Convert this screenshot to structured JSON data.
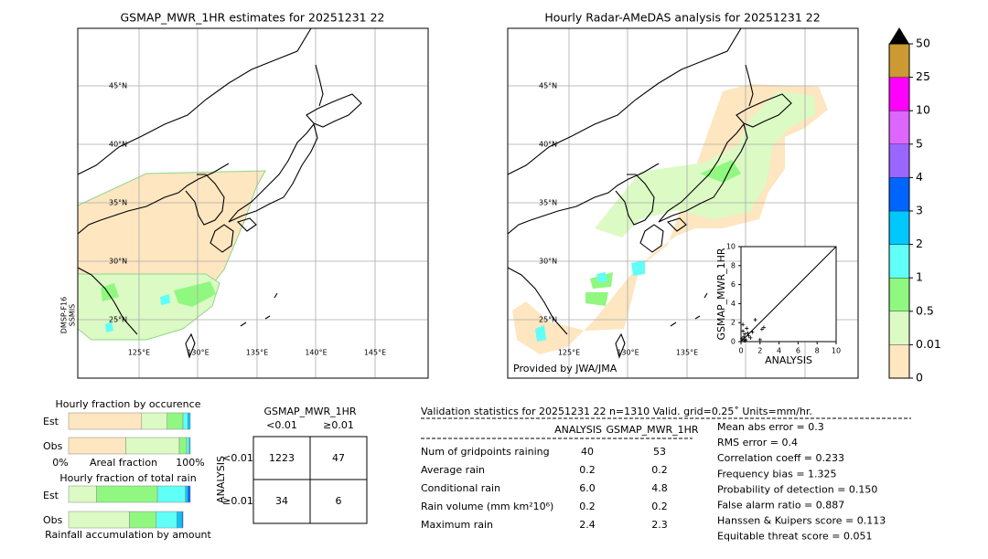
{
  "left_map": {
    "title": "GSMAP_MWR_1HR estimates for 20251231 22",
    "lat_labels": [
      "45°N",
      "40°N",
      "35°N",
      "30°N",
      "25°N"
    ],
    "lon_labels": [
      "125°E",
      "130°E",
      "135°E",
      "140°E",
      "145°E"
    ],
    "side_label": [
      "DMSP-F16",
      "SSMIS"
    ]
  },
  "right_map": {
    "title": "Hourly Radar-AMeDAS analysis for 20251231 22",
    "lat_labels": [
      "45°N",
      "40°N",
      "35°N",
      "30°N",
      "25°N"
    ],
    "lon_labels": [
      "125°E",
      "130°E",
      "135°E"
    ],
    "credit": "Provided by JWA/JMA"
  },
  "scatter": {
    "xlabel": "ANALYSIS",
    "ylabel": "GSMAP_MWR_1HR",
    "xlim": [
      0,
      10
    ],
    "ylim": [
      0,
      10
    ],
    "xticks": [
      0,
      2,
      4,
      6,
      8,
      10
    ],
    "yticks": [
      0,
      2,
      4,
      6,
      8,
      10
    ],
    "x": [
      0.1,
      0.2,
      0.3,
      0.4,
      0.5,
      0.6,
      0.8,
      1.0,
      1.2,
      1.5,
      2.0,
      2.2,
      2.4,
      0.2,
      0.4,
      0.7
    ],
    "y": [
      0.3,
      1.1,
      0.5,
      0.8,
      0.2,
      1.4,
      0.6,
      0.4,
      1.0,
      2.3,
      0.2,
      1.3,
      1.5,
      1.8,
      0.1,
      0.9
    ]
  },
  "colorbar": {
    "ticks": [
      0,
      0.01,
      0.5,
      1,
      2,
      3,
      4,
      5,
      10,
      25,
      50
    ],
    "colors": [
      "#fde6c0",
      "#dcfac4",
      "#90f880",
      "#60fff8",
      "#00c8ff",
      "#0064ff",
      "#9966ff",
      "#dd66ff",
      "#ff00ff",
      "#cc9933"
    ],
    "extend_color": "#000000"
  },
  "occurrence": {
    "title": "Hourly fraction by occurence",
    "rows": [
      "Est",
      "Obs"
    ],
    "axis_labels": [
      "0%",
      "Areal fraction",
      "100%"
    ],
    "xlim": [
      0,
      100
    ],
    "colors": [
      "#fde6c0",
      "#dcfac4",
      "#90f880",
      "#60fff8",
      "#00c8ff"
    ],
    "series": [
      [
        60,
        21,
        13,
        4,
        2
      ],
      [
        47,
        44,
        6,
        2,
        1
      ]
    ]
  },
  "total": {
    "title": "Hourly fraction of total rain",
    "rows": [
      "Est",
      "Obs"
    ],
    "footer": "Rainfall accumulation by amount",
    "xlim": [
      0,
      100
    ],
    "colors": [
      "#dcfac4",
      "#90f880",
      "#60fff8",
      "#00c8ff",
      "#0064ff"
    ],
    "series": [
      [
        23,
        50,
        23,
        2,
        2
      ],
      [
        50,
        22,
        17,
        4,
        1
      ]
    ]
  },
  "contingency": {
    "title": "GSMAP_MWR_1HR",
    "columns": [
      "<0.01",
      "≥0.01"
    ],
    "row_axis": "ANALYSIS",
    "rows": [
      "<0.01",
      "≥0.01"
    ],
    "cells": [
      [
        1223,
        47
      ],
      [
        34,
        6
      ]
    ]
  },
  "stats": {
    "title": "Validation statistics for 20251231 22  n=1310 Valid. grid=0.25˚ Units=mm/hr.",
    "columns": [
      "ANALYSIS",
      "GSMAP_MWR_1HR"
    ],
    "rows": [
      [
        "Num of gridpoints raining",
        "40",
        "53"
      ],
      [
        "Average rain",
        "0.2",
        "0.2"
      ],
      [
        "Conditional rain",
        "6.0",
        "4.8"
      ],
      [
        "Rain volume (mm km²10⁶)",
        "0.2",
        "0.2"
      ],
      [
        "Maximum rain",
        "2.4",
        "2.3"
      ]
    ]
  },
  "scores": [
    "Mean abs error =    0.3",
    "RMS error =    0.4",
    "Correlation coeff =  0.233",
    "Frequency bias =  1.325",
    "Probability of detection =  0.150",
    "False alarm ratio =  0.887",
    "Hanssen & Kuipers score =  0.113",
    "Equitable threat score =  0.051"
  ]
}
